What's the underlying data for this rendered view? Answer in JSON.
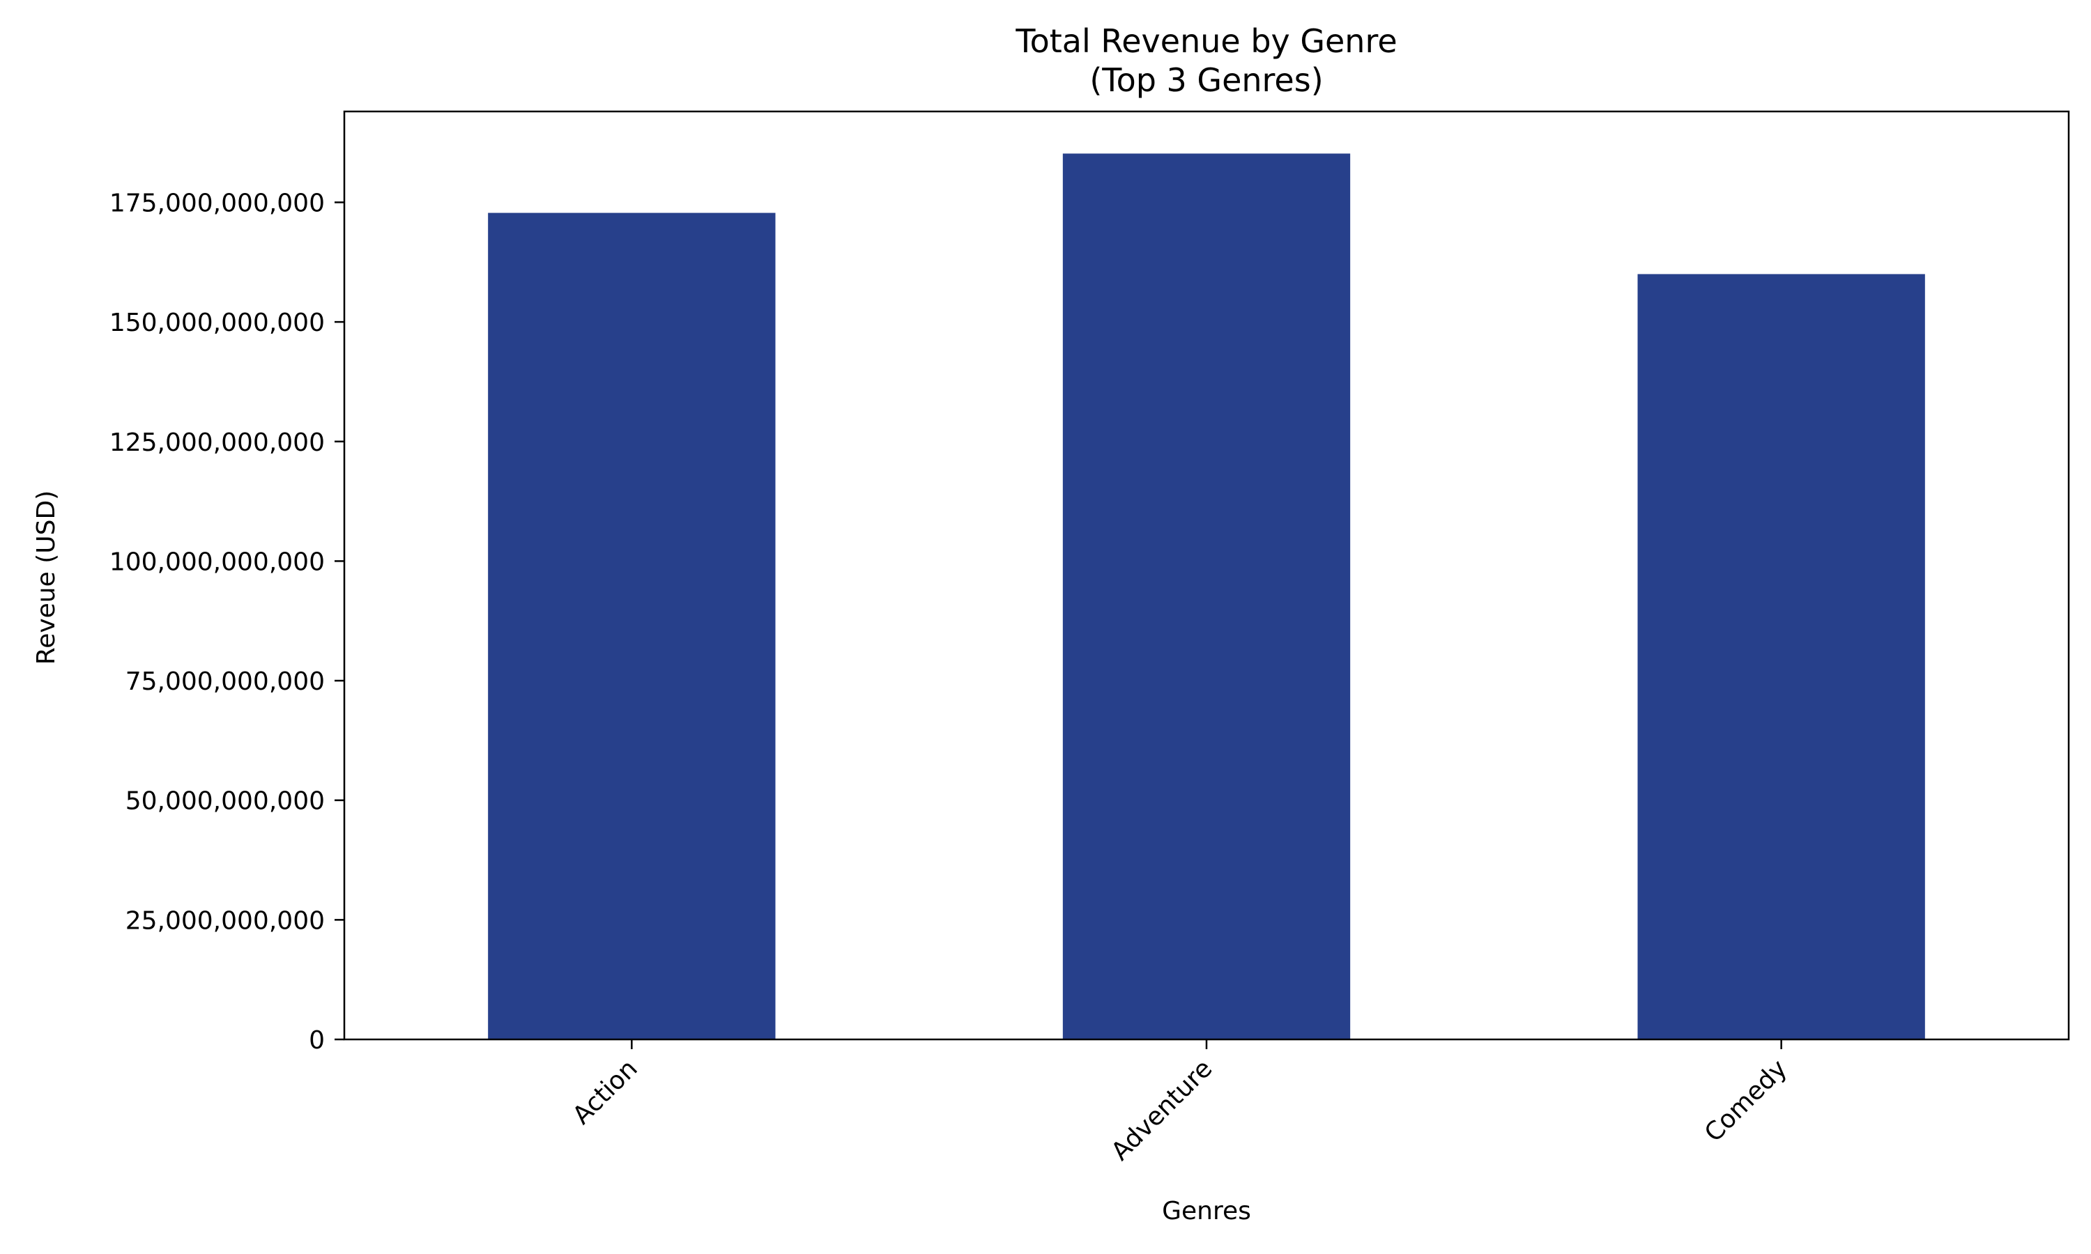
{
  "chart_data": {
    "type": "bar",
    "title": "Total Revenue by Genre",
    "subtitle": "(Top 3 Genres)",
    "xlabel": "Genres",
    "ylabel": "Reveue (USD)",
    "categories": [
      "Action",
      "Adventure",
      "Comedy"
    ],
    "values": [
      172800000000,
      185200000000,
      160000000000
    ],
    "ylim": [
      0,
      194000000000
    ],
    "y_ticks": [
      0,
      25000000000,
      50000000000,
      75000000000,
      100000000000,
      125000000000,
      150000000000,
      175000000000
    ],
    "y_tick_labels": [
      "0",
      "25,000,000,000",
      "50,000,000,000",
      "75,000,000,000",
      "100,000,000,000",
      "125,000,000,000",
      "150,000,000,000",
      "175,000,000,000"
    ],
    "grid": false,
    "legend": "none",
    "x_tick_rotation": "45 degrees",
    "colors": {
      "bar": "#27408b",
      "axes": "#000000",
      "background": "#ffffff"
    }
  }
}
